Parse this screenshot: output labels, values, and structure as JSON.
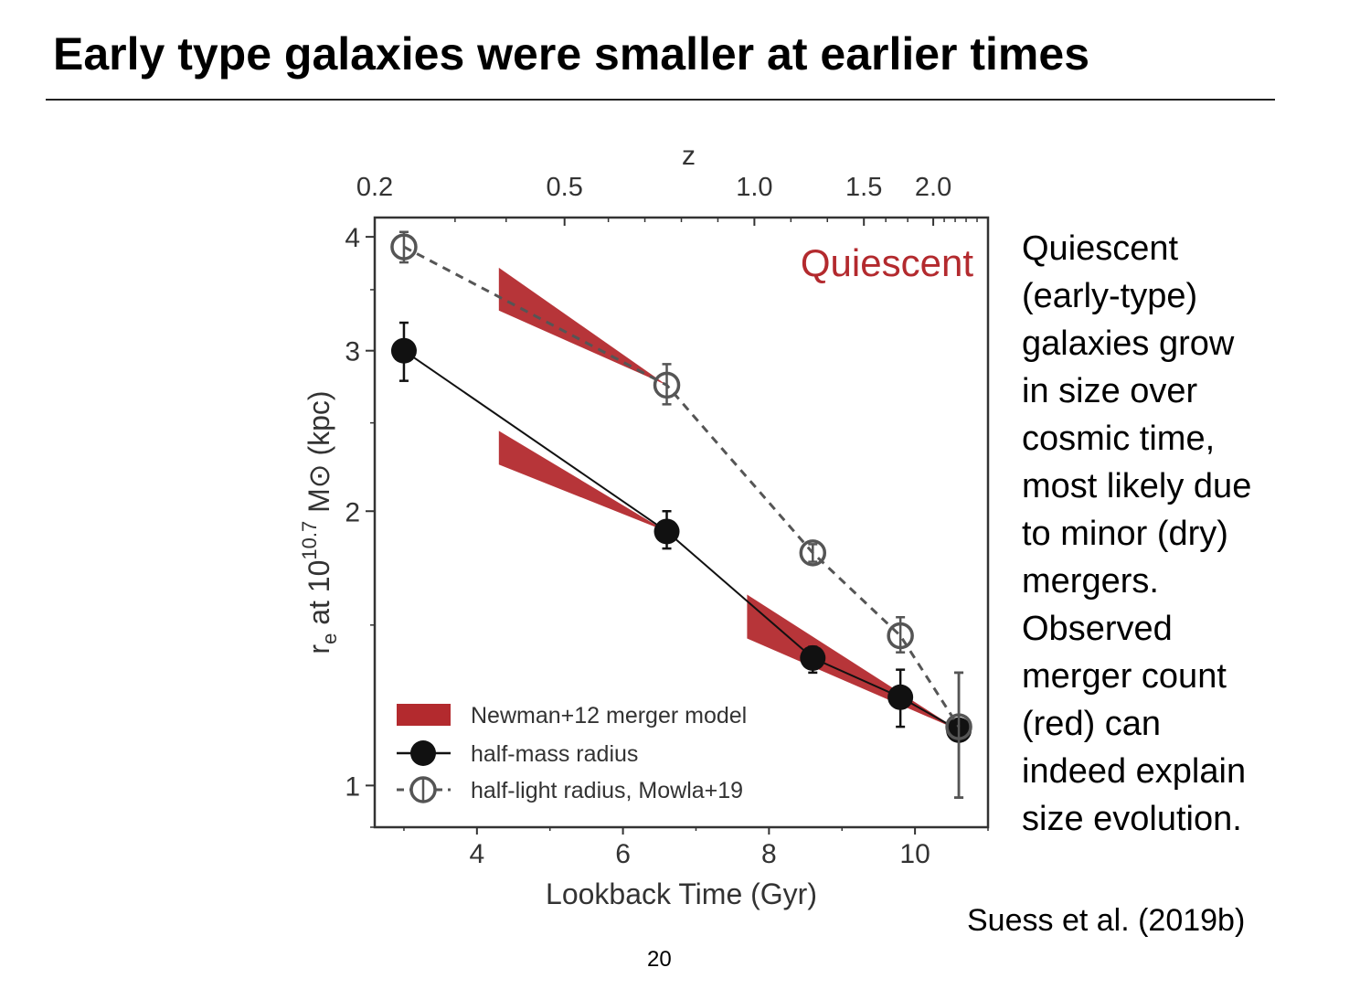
{
  "slide": {
    "title": "Early type galaxies were smaller at earlier times",
    "side_text": [
      "Quiescent",
      "(early-type)",
      "galaxies grow",
      "in size over",
      "cosmic time,",
      "most likely due",
      "to minor (dry)",
      "mergers.",
      "Observed",
      "merger count",
      "(red) can",
      "indeed explain",
      "size evolution."
    ],
    "citation": "Suess et al. (2019b)",
    "page_number": "20"
  },
  "chart_data": {
    "type": "line",
    "panel_label": "Quiescent",
    "panel_label_color": "#b32a2e",
    "xlabel": "Lookback Time (Gyr)",
    "ylabel_parts": {
      "base": "r",
      "sub": "e",
      "mid": " at 10",
      "sup": "10.7",
      "tail": " M⊙ (kpc)"
    },
    "xlim": [
      2.6,
      11.0
    ],
    "ylim": [
      0.9,
      4.2
    ],
    "yscale": "log",
    "x_ticks": [
      4,
      6,
      8,
      10
    ],
    "y_ticks": [
      1,
      2,
      3,
      4
    ],
    "top_axis": {
      "label": "z",
      "ticks": [
        {
          "label": "0.2",
          "x": 2.6
        },
        {
          "label": "0.5",
          "x": 5.2
        },
        {
          "label": "1.0",
          "x": 7.8
        },
        {
          "label": "1.5",
          "x": 9.3
        },
        {
          "label": "2.0",
          "x": 10.25
        }
      ]
    },
    "series": [
      {
        "name": "half-mass radius",
        "style": "solid",
        "marker": "filled-circle",
        "color": "#111111",
        "points": [
          {
            "x": 3.0,
            "y": 3.0,
            "ylo": 2.78,
            "yhi": 3.22
          },
          {
            "x": 6.6,
            "y": 1.9,
            "ylo": 1.82,
            "yhi": 2.0
          },
          {
            "x": 8.6,
            "y": 1.38,
            "ylo": 1.33,
            "yhi": 1.42
          },
          {
            "x": 9.8,
            "y": 1.25,
            "ylo": 1.16,
            "yhi": 1.34
          },
          {
            "x": 10.6,
            "y": 1.15,
            "ylo": 0.97,
            "yhi": 1.33
          }
        ]
      },
      {
        "name": "half-light radius, Mowla+19",
        "style": "dashed",
        "marker": "open-circle-cross",
        "color": "#555555",
        "points": [
          {
            "x": 3.0,
            "y": 3.9,
            "ylo": 3.75,
            "yhi": 4.05
          },
          {
            "x": 6.6,
            "y": 2.75,
            "ylo": 2.62,
            "yhi": 2.9
          },
          {
            "x": 8.6,
            "y": 1.8,
            "ylo": 1.76,
            "yhi": 1.84
          },
          {
            "x": 9.8,
            "y": 1.46,
            "ylo": 1.4,
            "yhi": 1.53
          },
          {
            "x": 10.6,
            "y": 1.16,
            "ylo": 0.97,
            "yhi": 1.33
          }
        ]
      }
    ],
    "bands": {
      "name": "Newman+12 merger model",
      "color": "#b32a2e",
      "polygons": [
        [
          [
            4.3,
            3.7
          ],
          [
            6.6,
            2.75
          ],
          [
            4.3,
            3.32
          ]
        ],
        [
          [
            4.3,
            2.45
          ],
          [
            6.6,
            1.9
          ],
          [
            4.3,
            2.25
          ]
        ],
        [
          [
            7.7,
            1.62
          ],
          [
            10.6,
            1.15
          ],
          [
            7.7,
            1.45
          ]
        ]
      ]
    },
    "legend": {
      "position": "lower-left",
      "entries": [
        "Newman+12 merger model",
        "half-mass radius",
        "half-light radius, Mowla+19"
      ]
    }
  }
}
